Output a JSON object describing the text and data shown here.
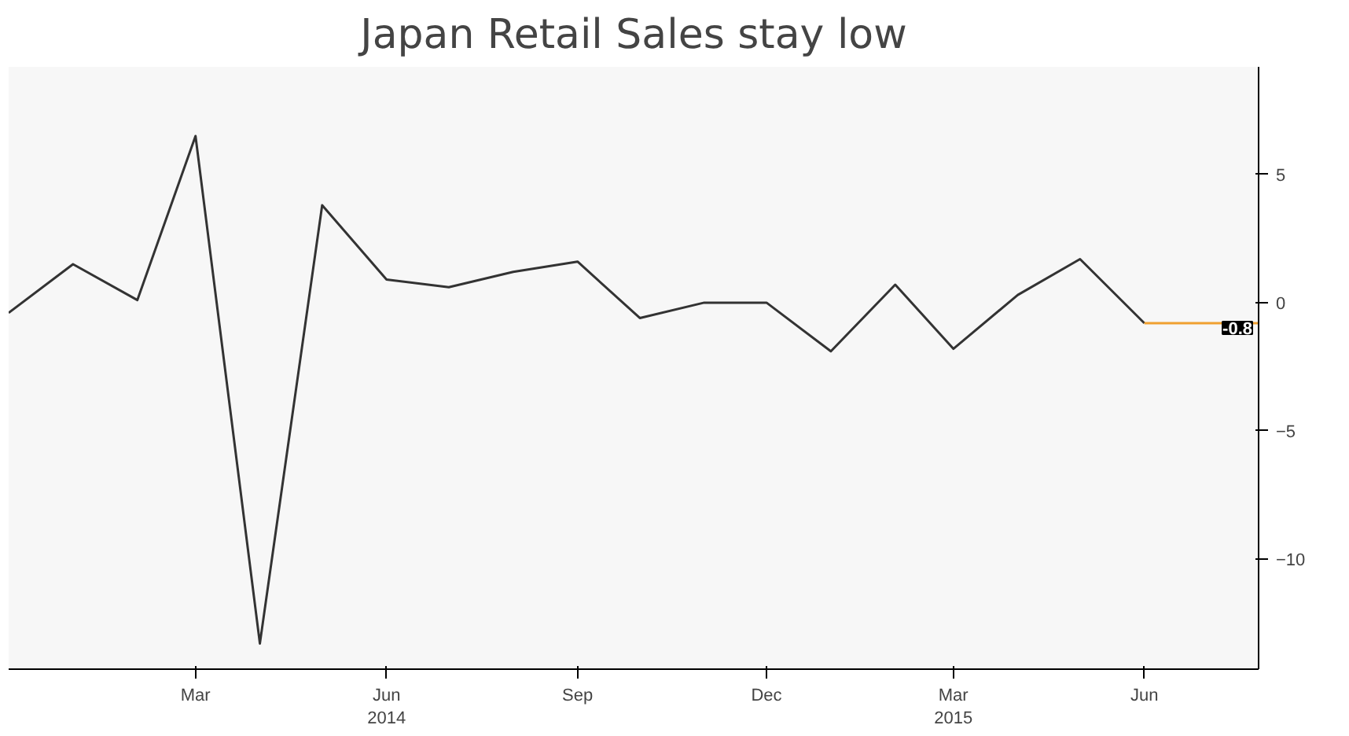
{
  "chart_data": {
    "type": "line",
    "title": "Japan Retail Sales stay low",
    "x": [
      "2013-12",
      "2014-01",
      "2014-02",
      "2014-03",
      "2014-04",
      "2014-05",
      "2014-06",
      "2014-07",
      "2014-08",
      "2014-09",
      "2014-10",
      "2014-11",
      "2014-12",
      "2015-01",
      "2015-02",
      "2015-03",
      "2015-04",
      "2015-05",
      "2015-06"
    ],
    "series": [
      {
        "color": "#333333",
        "values": [
          -0.4,
          1.5,
          0.1,
          6.5,
          -13.3,
          3.8,
          0.9,
          0.6,
          1.2,
          1.6,
          -0.6,
          0,
          0,
          -1.9,
          0.7,
          -1.8,
          0.3,
          1.7,
          -0.8
        ]
      }
    ],
    "xlim": [
      "2013-12-01",
      "2015-07-26"
    ],
    "xticks": [
      {
        "value": "2014-03",
        "label": "Mar"
      },
      {
        "value": "2014-06",
        "label": "Jun\n2014"
      },
      {
        "value": "2014-09",
        "label": "Sep"
      },
      {
        "value": "2014-12",
        "label": "Dec"
      },
      {
        "value": "2015-03",
        "label": "Mar\n2015"
      },
      {
        "value": "2015-06",
        "label": "Jun"
      }
    ],
    "ylim": [
      -14.3,
      9.2
    ],
    "yticks": [
      -10,
      -5,
      0,
      5
    ],
    "ref_lines": [
      {
        "axis": "y",
        "value": -0.8,
        "label": "-0.8",
        "color": "#f0a030"
      }
    ],
    "grid": false,
    "marker": "none",
    "line_style": "solid"
  }
}
